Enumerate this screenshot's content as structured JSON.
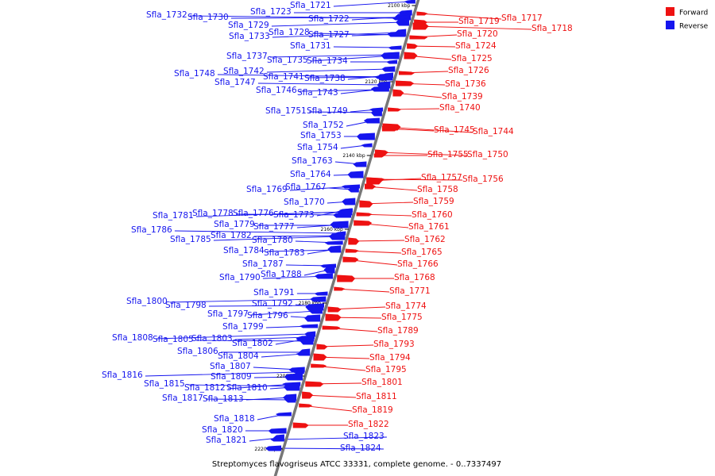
{
  "colors": {
    "forward": "#ee1111",
    "reverse": "#1515ee",
    "backbone": "#777777"
  },
  "legend": [
    {
      "key": "forward",
      "label": "Forward"
    },
    {
      "key": "reverse",
      "label": "Reverse"
    }
  ],
  "caption": "Streptomyces flavogriseus ATCC 33331, complete genome. - 0..7337497",
  "ticks": [
    "2100 kbp",
    "2120 kbp",
    "2140 kbp",
    "2160 kbp",
    "2180 kbp",
    "2200 kbp",
    "2220 kbp"
  ],
  "reverse_genes": [
    "Sfla_1721",
    "Sfla_1723",
    "Sfla_1722",
    "Sfla_1732",
    "Sfla_1730",
    "Sfla_1729",
    "Sfla_1728",
    "Sfla_1727",
    "Sfla_1733",
    "Sfla_1731",
    "Sfla_1737",
    "Sfla_1735",
    "Sfla_1734",
    "Sfla_1742",
    "Sfla_1748",
    "Sfla_1741",
    "Sfla_1738",
    "Sfla_1747",
    "Sfla_1746",
    "Sfla_1743",
    "Sfla_1751",
    "Sfla_1749",
    "Sfla_1752",
    "Sfla_1753",
    "Sfla_1754",
    "Sfla_1763",
    "Sfla_1764",
    "Sfla_1769",
    "Sfla_1767",
    "Sfla_1770",
    "Sfla_1781",
    "Sfla_1778",
    "Sfla_1776",
    "Sfla_1773",
    "Sfla_1779",
    "Sfla_1777",
    "Sfla_1786",
    "Sfla_1782",
    "Sfla_1785",
    "Sfla_1780",
    "Sfla_1784",
    "Sfla_1783",
    "Sfla_1787",
    "Sfla_1790",
    "Sfla_1788",
    "Sfla_1791",
    "Sfla_1800",
    "Sfla_1792",
    "Sfla_1798",
    "Sfla_1797",
    "Sfla_1796",
    "Sfla_1799",
    "Sfla_1808",
    "Sfla_1805",
    "Sfla_1803",
    "Sfla_1802",
    "Sfla_1806",
    "Sfla_1804",
    "Sfla_1807",
    "Sfla_1809",
    "Sfla_1816",
    "Sfla_1815",
    "Sfla_1810",
    "Sfla_1812",
    "Sfla_1817",
    "Sfla_1813",
    "Sfla_1818",
    "Sfla_1820",
    "Sfla_1821",
    "Sfla_1823",
    "Sfla_1824"
  ],
  "forward_genes": [
    "Sfla_1717",
    "Sfla_1719",
    "Sfla_1718",
    "Sfla_1720",
    "Sfla_1724",
    "Sfla_1725",
    "Sfla_1726",
    "Sfla_1736",
    "Sfla_1739",
    "Sfla_1740",
    "Sfla_1745",
    "Sfla_1744",
    "Sfla_1755",
    "Sfla_1750",
    "Sfla_1757",
    "Sfla_1756",
    "Sfla_1758",
    "Sfla_1759",
    "Sfla_1760",
    "Sfla_1761",
    "Sfla_1762",
    "Sfla_1765",
    "Sfla_1766",
    "Sfla_1768",
    "Sfla_1771",
    "Sfla_1774",
    "Sfla_1775",
    "Sfla_1789",
    "Sfla_1793",
    "Sfla_1794",
    "Sfla_1795",
    "Sfla_1801",
    "Sfla_1811",
    "Sfla_1819",
    "Sfla_1822"
  ]
}
